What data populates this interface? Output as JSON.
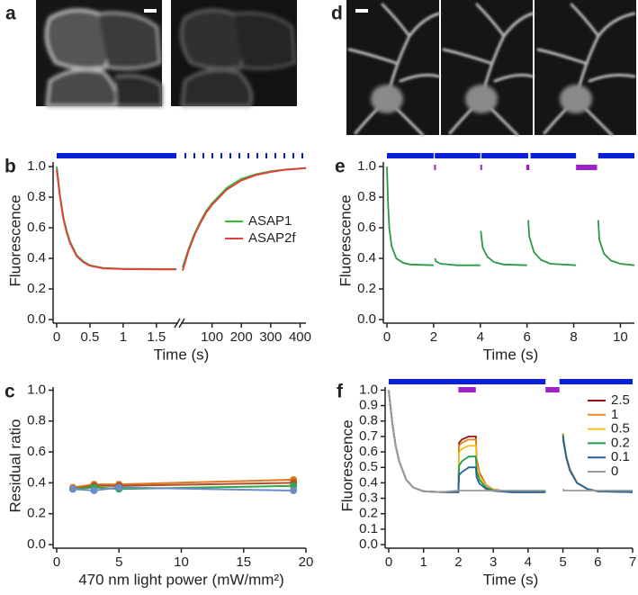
{
  "image_panels": [
    {
      "panel": "a"
    },
    {
      "panel": "d"
    }
  ],
  "chart_data": [
    {
      "panel": "b",
      "type": "line",
      "ylabel": "Fluorescence",
      "xlabel": "Time (s)",
      "xlim": [
        0,
        1.8
      ],
      "x2lim": [
        0,
        420
      ],
      "ylim": [
        0,
        1.03
      ],
      "xticks": [
        0,
        0.5,
        1,
        1.5
      ],
      "x2ticks": [
        100,
        200,
        300,
        400
      ],
      "yticks": [
        {
          "value": 0,
          "label": "0.0"
        },
        0.2,
        0.4,
        0.6,
        0.8,
        {
          "value": 1,
          "label": "1.0"
        }
      ],
      "blue_light": [
        [
          0,
          1.8
        ]
      ],
      "legend": "center right",
      "series": [
        {
          "name": "ASAP1",
          "color": "#2ec02e",
          "x": [
            0,
            0.05,
            0.1,
            0.15,
            0.2,
            0.3,
            0.4,
            0.5,
            0.7,
            1,
            1.5,
            1.8
          ],
          "values": [
            1,
            0.81,
            0.67,
            0.58,
            0.51,
            0.42,
            0.38,
            0.355,
            0.337,
            0.332,
            0.33,
            0.33
          ],
          "x_recovery": [
            0,
            20,
            40,
            60,
            80,
            100,
            150,
            200,
            250,
            300,
            350,
            420
          ],
          "values_recovery": [
            0.34,
            0.46,
            0.56,
            0.64,
            0.71,
            0.76,
            0.86,
            0.92,
            0.95,
            0.97,
            0.98,
            0.99
          ]
        },
        {
          "name": "ASAP2f",
          "color": "#e04040",
          "x": [
            0,
            0.05,
            0.1,
            0.15,
            0.2,
            0.3,
            0.4,
            0.5,
            0.7,
            1,
            1.5,
            1.8
          ],
          "values": [
            0.98,
            0.8,
            0.66,
            0.57,
            0.5,
            0.415,
            0.375,
            0.352,
            0.335,
            0.33,
            0.328,
            0.328
          ],
          "x_recovery": [
            0,
            20,
            40,
            60,
            80,
            100,
            150,
            200,
            250,
            300,
            350,
            420
          ],
          "values_recovery": [
            0.32,
            0.45,
            0.55,
            0.63,
            0.7,
            0.75,
            0.85,
            0.91,
            0.945,
            0.965,
            0.98,
            0.99
          ]
        }
      ]
    },
    {
      "panel": "c",
      "type": "line",
      "ylabel": "Residual ratio",
      "xlabel": "470 nm light power (mW/mm²)",
      "xlim": [
        0,
        20
      ],
      "ylim": [
        0,
        1.02
      ],
      "xticks": [
        0,
        5,
        10,
        15,
        20
      ],
      "yticks": [
        {
          "value": 0,
          "label": "0.0"
        },
        0.2,
        0.4,
        0.6,
        0.8,
        {
          "value": 1,
          "label": "1.0"
        }
      ],
      "x": [
        1.3,
        3,
        5,
        19
      ],
      "series": [
        {
          "color": "#e0781e",
          "values": [
            0.37,
            0.39,
            0.39,
            0.42
          ]
        },
        {
          "color": "#b0502a",
          "values": [
            0.36,
            0.38,
            0.38,
            0.4
          ]
        },
        {
          "color": "#2fa84f",
          "values": [
            0.36,
            0.37,
            0.36,
            0.38
          ]
        },
        {
          "color": "#6b8cc4",
          "values": [
            0.36,
            0.35,
            0.37,
            0.35
          ]
        }
      ]
    },
    {
      "panel": "e",
      "type": "line",
      "ylabel": "Fluorescence",
      "xlabel": "Time (s)",
      "xlim": [
        0,
        10.6
      ],
      "ylim": [
        0,
        1.03
      ],
      "xticks": [
        0,
        2,
        4,
        6,
        8,
        10
      ],
      "yticks": [
        {
          "value": 0,
          "label": "0.0"
        },
        0.2,
        0.4,
        0.6,
        0.8,
        {
          "value": 1,
          "label": "1.0"
        }
      ],
      "blue_light": [
        [
          0,
          2
        ],
        [
          2.05,
          4
        ],
        [
          4.05,
          6.05
        ],
        [
          6.15,
          8.1
        ],
        [
          9.05,
          10.6
        ]
      ],
      "violet_light": [
        [
          2.02,
          2.08
        ],
        [
          4,
          4.06
        ],
        [
          5.97,
          6.1
        ],
        [
          8.1,
          9
        ]
      ],
      "x": [
        0,
        0.05,
        0.1,
        0.2,
        0.4,
        0.7,
        1,
        2,
        2.02,
        2.05,
        2.1,
        2.3,
        3,
        4,
        4.01,
        4.02,
        4.1,
        4.3,
        4.6,
        5,
        6,
        6.02,
        6.05,
        6.1,
        6.3,
        6.6,
        7,
        8.1,
        8.5,
        9.05,
        9.1,
        9.3,
        9.6,
        10,
        10.6
      ],
      "series": [
        {
          "color": "#2a9a40",
          "values": [
            1,
            0.75,
            0.6,
            0.48,
            0.4,
            0.37,
            0.36,
            0.355,
            null,
            0.4,
            0.38,
            0.365,
            0.355,
            0.355,
            null,
            0.58,
            0.47,
            0.41,
            0.375,
            0.36,
            0.355,
            null,
            0.65,
            0.54,
            0.44,
            0.39,
            0.365,
            0.355,
            null,
            0.65,
            0.52,
            0.43,
            0.385,
            0.365,
            0.355
          ]
        }
      ]
    },
    {
      "panel": "f",
      "type": "line",
      "ylabel": "Fluorescence",
      "xlabel": "Time (s)",
      "xlim": [
        0,
        7
      ],
      "ylim": [
        0,
        1.02
      ],
      "xticks": [
        0,
        1,
        2,
        3,
        4,
        5,
        6,
        7
      ],
      "yticks": [
        {
          "value": 0,
          "label": "0.0"
        },
        0.1,
        0.2,
        0.3,
        0.4,
        0.5,
        0.6,
        0.7,
        0.8,
        0.9,
        {
          "value": 1,
          "label": "1.0"
        }
      ],
      "blue_light": [
        [
          0,
          4.5
        ],
        [
          4.9,
          7
        ]
      ],
      "violet_light": [
        [
          2,
          2.5
        ],
        [
          4.5,
          4.9
        ]
      ],
      "legend": "upper right",
      "x": [
        0,
        0.1,
        0.2,
        0.3,
        0.5,
        0.7,
        1,
        1.5,
        2,
        2.02,
        2.1,
        2.3,
        2.5,
        2.52,
        2.6,
        2.8,
        3,
        3.5,
        4.5,
        4.7,
        5,
        5.02,
        5.1,
        5.2,
        5.4,
        5.7,
        6,
        7
      ],
      "series": [
        {
          "name": "2.5",
          "color": "#a01010",
          "values": [
            1,
            0.79,
            0.64,
            0.54,
            0.42,
            0.37,
            0.345,
            0.34,
            0.34,
            0.66,
            0.68,
            0.7,
            0.7,
            0.556,
            0.466,
            0.383,
            0.358,
            0.34,
            0.34,
            null,
            0.72,
            0.68,
            0.57,
            0.49,
            0.4,
            0.36,
            0.345,
            0.34
          ]
        },
        {
          "name": "1",
          "color": "#e88a1a",
          "values": [
            1,
            0.79,
            0.64,
            0.54,
            0.42,
            0.37,
            0.345,
            0.34,
            0.34,
            0.64,
            0.66,
            0.68,
            0.68,
            0.544,
            0.459,
            0.381,
            0.357,
            0.34,
            0.34,
            null,
            0.72,
            0.68,
            0.57,
            0.49,
            0.4,
            0.36,
            0.345,
            0.34
          ]
        },
        {
          "name": "0.5",
          "color": "#f2c21a",
          "values": [
            1,
            0.79,
            0.64,
            0.54,
            0.42,
            0.37,
            0.345,
            0.34,
            0.34,
            0.6,
            0.62,
            0.64,
            0.64,
            0.52,
            0.445,
            0.376,
            0.355,
            0.34,
            0.34,
            null,
            0.71,
            0.67,
            0.57,
            0.49,
            0.4,
            0.36,
            0.345,
            0.34
          ]
        },
        {
          "name": "0.2",
          "color": "#1f9e4a",
          "values": [
            1,
            0.79,
            0.64,
            0.54,
            0.42,
            0.37,
            0.345,
            0.34,
            0.34,
            0.51,
            0.54,
            0.57,
            0.57,
            0.478,
            0.421,
            0.368,
            0.352,
            0.34,
            0.34,
            null,
            0.71,
            0.67,
            0.56,
            0.48,
            0.4,
            0.36,
            0.345,
            0.34
          ]
        },
        {
          "name": "0.1",
          "color": "#2060a0",
          "values": [
            1,
            0.79,
            0.64,
            0.54,
            0.42,
            0.37,
            0.345,
            0.34,
            0.34,
            0.45,
            0.47,
            0.5,
            0.5,
            0.436,
            0.396,
            0.359,
            0.348,
            0.34,
            0.34,
            null,
            0.7,
            0.66,
            0.56,
            0.48,
            0.4,
            0.36,
            0.345,
            0.34
          ]
        },
        {
          "name": "0",
          "color": "#9a9a9a",
          "values": [
            1,
            0.79,
            0.64,
            0.54,
            0.42,
            0.37,
            0.345,
            0.34,
            0.35,
            0.35,
            0.35,
            0.35,
            0.35,
            0.35,
            0.35,
            0.35,
            0.35,
            0.35,
            0.35,
            null,
            0.36,
            0.35,
            0.35,
            0.35,
            0.35,
            0.35,
            0.35,
            0.35
          ]
        }
      ]
    }
  ]
}
